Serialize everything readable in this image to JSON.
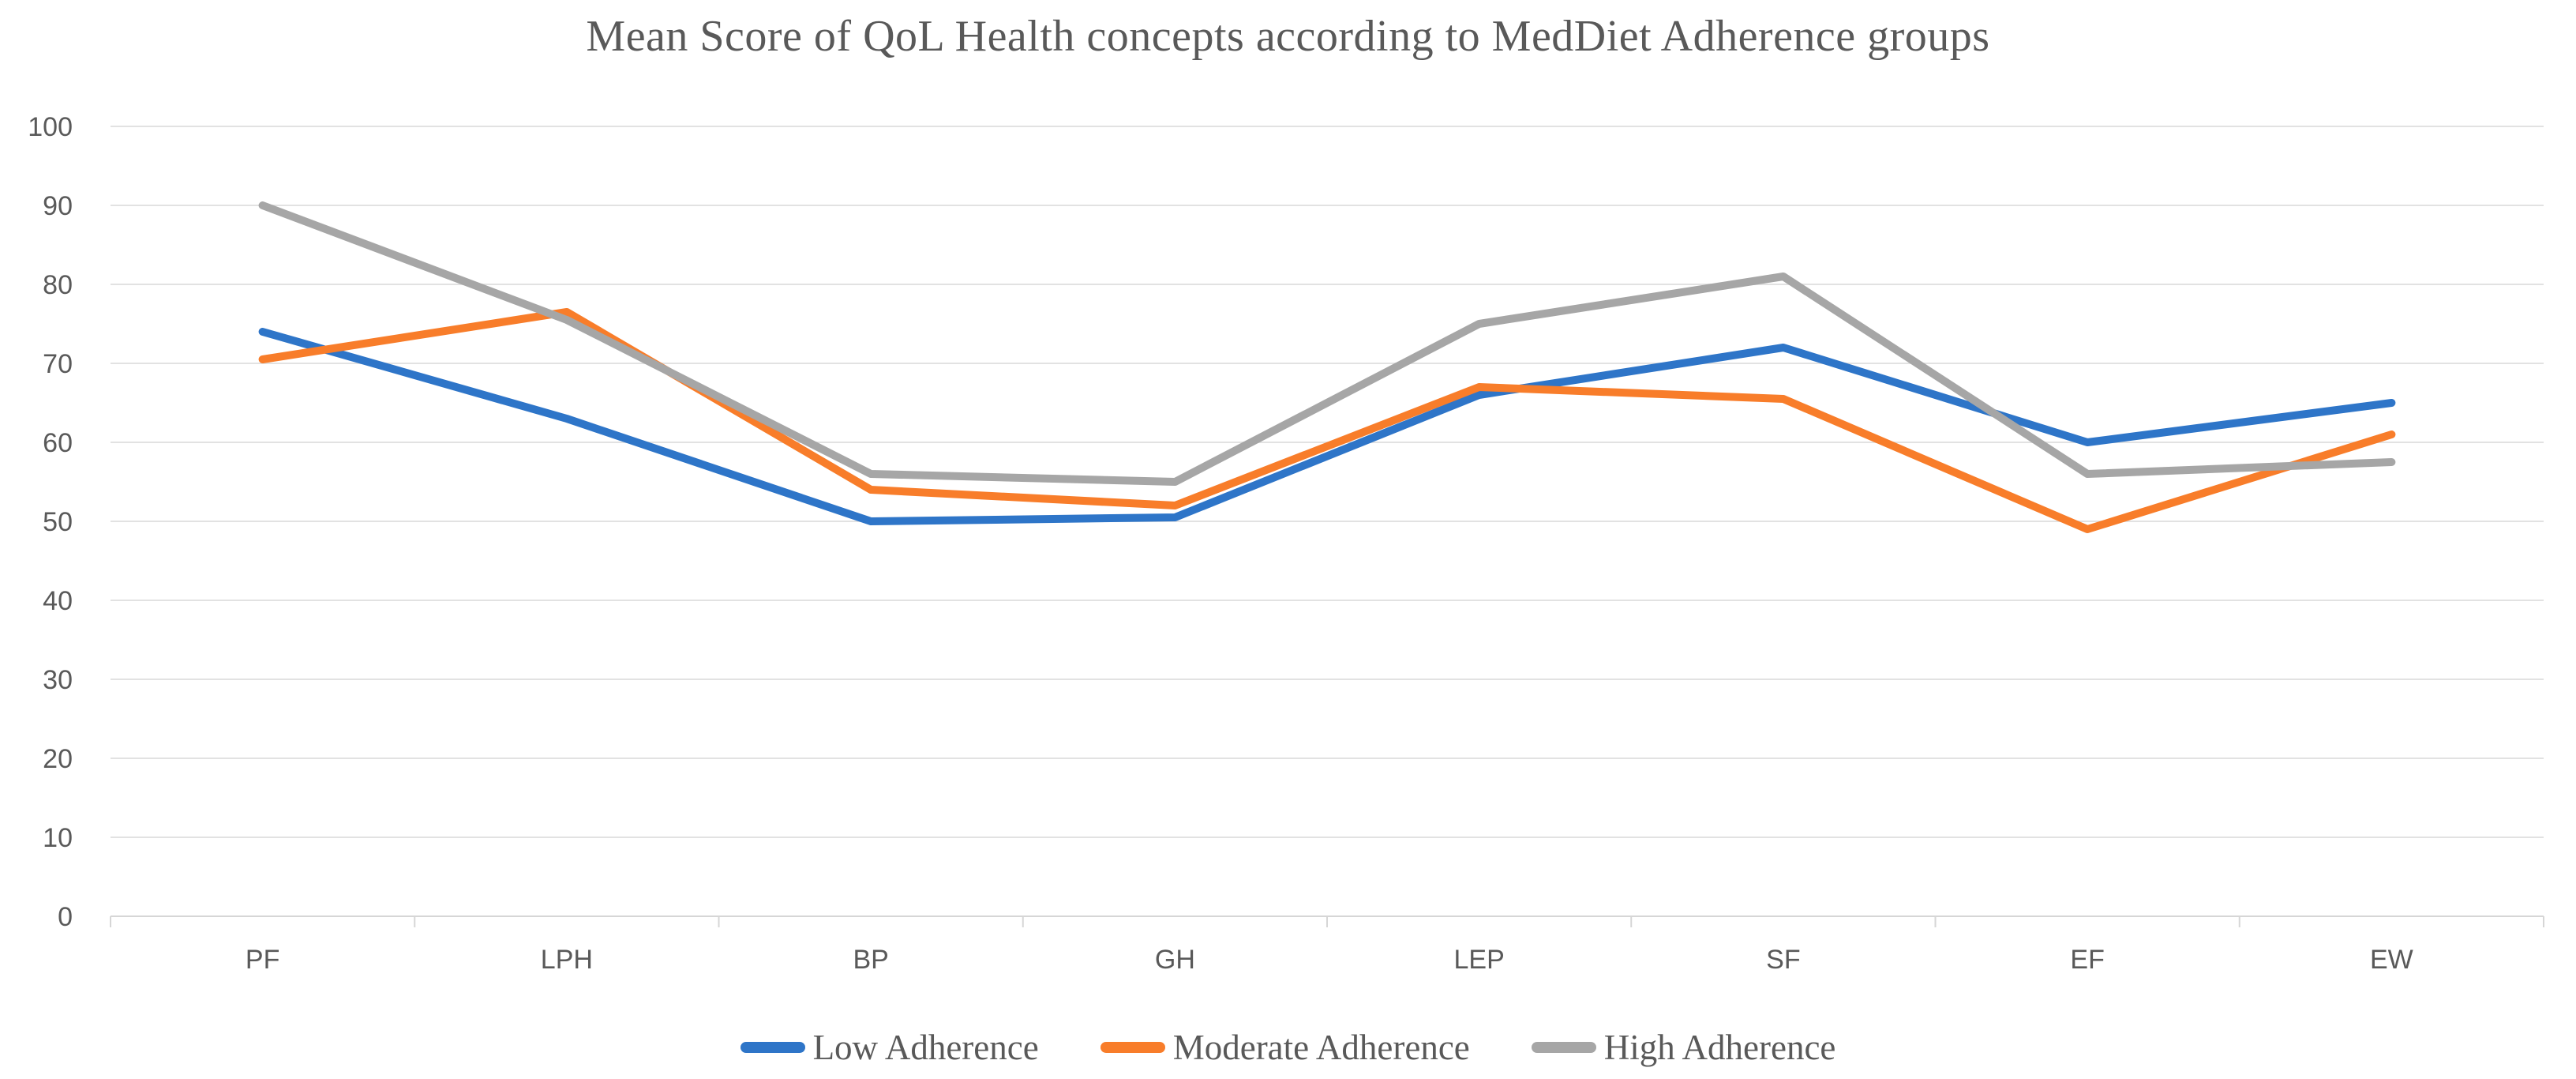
{
  "title": "Mean Score of QoL Health concepts according to MedDiet Adherence groups",
  "chart_data": {
    "type": "line",
    "title": "Mean Score of QoL Health concepts according to MedDiet Adherence groups",
    "categories": [
      "PF",
      "LPH",
      "BP",
      "GH",
      "LEP",
      "SF",
      "EF",
      "EW"
    ],
    "series": [
      {
        "name": "Low Adherence",
        "color": "#2E75C8",
        "values": [
          74,
          63,
          50,
          50.5,
          66,
          72,
          60,
          65
        ]
      },
      {
        "name": "Moderate Adherence",
        "color": "#F87D2A",
        "values": [
          70.5,
          76.5,
          54,
          52,
          67,
          65.5,
          49,
          61
        ]
      },
      {
        "name": "High Adherence",
        "color": "#A6A6A6",
        "values": [
          90,
          75.5,
          56,
          55,
          75,
          81,
          56,
          57.5
        ]
      }
    ],
    "xlabel": "",
    "ylabel": "",
    "ylim": [
      0,
      100
    ],
    "ytick_step": 10,
    "ytick_labels": [
      "0",
      "10",
      "20",
      "30",
      "40",
      "50",
      "60",
      "70",
      "80",
      "90",
      "100"
    ],
    "grid": true,
    "gridline_color": "#E2E2E2",
    "axis_line_color": "#D6D6D6",
    "tick_label_color": "#595959",
    "title_color": "#595959",
    "legend_position": "bottom",
    "legend_labels": [
      "Low Adherence",
      "Moderate Adherence",
      "High Adherence"
    ],
    "line_width": 10
  }
}
